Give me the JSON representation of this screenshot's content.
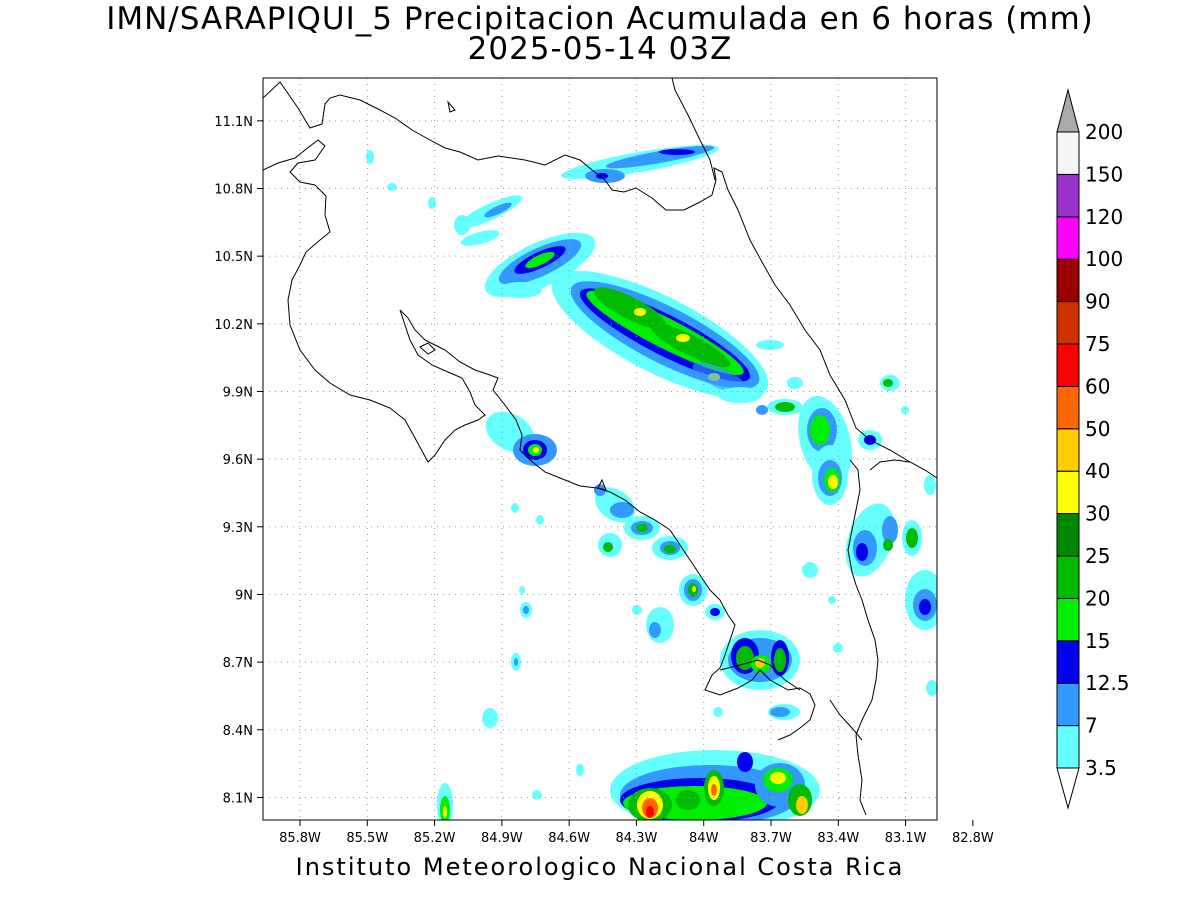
{
  "header": {
    "title_line1": "IMN/SARAPIQUI_5 Precipitacion Acumulada en 6 horas (mm)",
    "title_line2": "2025-05-14 03Z"
  },
  "footer": {
    "credit": "Instituto Meteorologico Nacional Costa Rica"
  },
  "map": {
    "lon_ticks": [
      "85.8W",
      "85.5W",
      "85.2W",
      "84.9W",
      "84.6W",
      "84.3W",
      "84W",
      "83.7W",
      "83.4W",
      "83.1W",
      "82.8W"
    ],
    "lon_values": [
      -85.8,
      -85.5,
      -85.2,
      -84.9,
      -84.6,
      -84.3,
      -84.0,
      -83.7,
      -83.4,
      -83.1,
      -82.8
    ],
    "lat_ticks": [
      "11.1N",
      "10.8N",
      "10.5N",
      "10.2N",
      "9.9N",
      "9.6N",
      "9.3N",
      "9N",
      "8.7N",
      "8.4N",
      "8.1N"
    ],
    "lat_values": [
      11.1,
      10.8,
      10.5,
      10.2,
      9.9,
      9.6,
      9.3,
      9.0,
      8.7,
      8.4,
      8.1
    ],
    "lon_range": [
      -85.965,
      -82.96
    ],
    "lat_range": [
      8.0,
      11.29
    ],
    "grid": "dotted"
  },
  "colorbar": {
    "labels": [
      "3.5",
      "7",
      "12.5",
      "15",
      "20",
      "25",
      "30",
      "40",
      "50",
      "60",
      "75",
      "90",
      "100",
      "120",
      "150",
      "200"
    ],
    "colors": [
      "#66ffff",
      "#3399ff",
      "#0000ee",
      "#00ee00",
      "#00bb00",
      "#008800",
      "#ffff00",
      "#ffcc00",
      "#ff6600",
      "#ff0000",
      "#cc3300",
      "#990000",
      "#ff00ff",
      "#9933cc",
      "#f5f5f5",
      "#aaaaaa"
    ]
  },
  "precip_cells": [
    {
      "lon": -84.47,
      "lat": 10.33,
      "level": 6,
      "note": "central band"
    },
    {
      "lon": -84.05,
      "lat": 10.12,
      "level": 6
    },
    {
      "lon": -83.75,
      "lat": 9.98,
      "level": 6
    },
    {
      "lon": -84.6,
      "lat": 9.64,
      "level": 5
    },
    {
      "lon": -83.1,
      "lat": 9.48,
      "level": 6
    },
    {
      "lon": -83.55,
      "lat": 8.7,
      "level": 7
    },
    {
      "lon": -84.0,
      "lat": 8.06,
      "level": 9
    },
    {
      "lon": -83.67,
      "lat": 8.12,
      "level": 9
    },
    {
      "lon": -84.92,
      "lat": 8.06,
      "level": 6
    }
  ]
}
